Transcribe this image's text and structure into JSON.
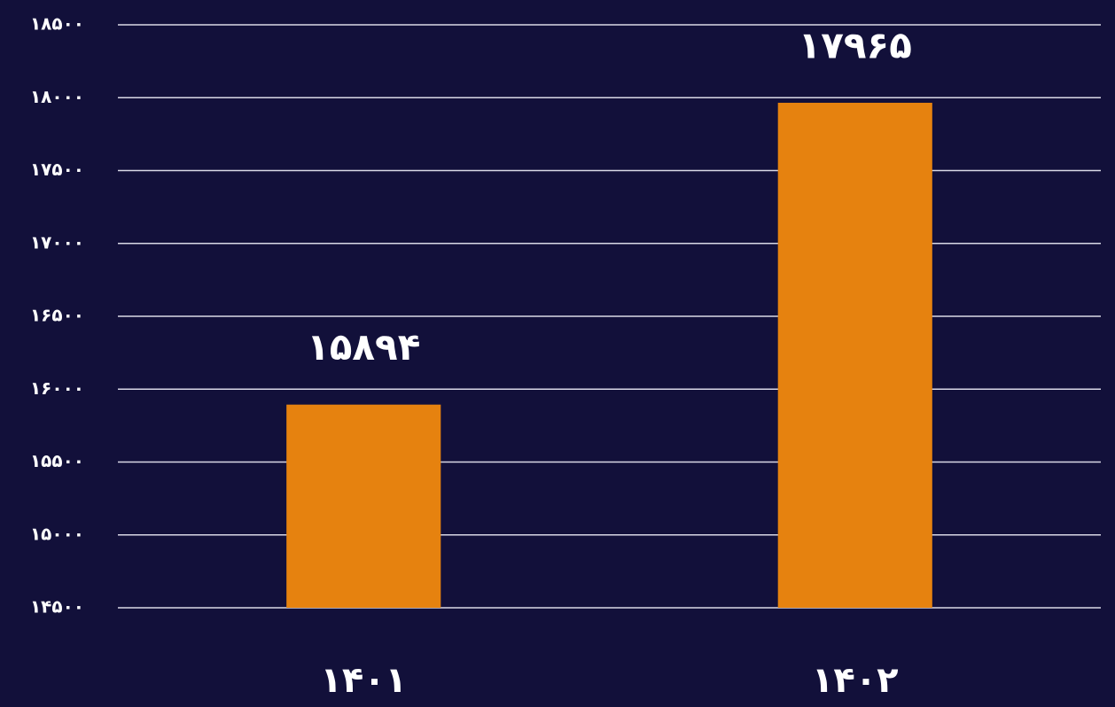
{
  "chart_data": {
    "type": "bar",
    "categories": [
      "۱۴۰۱",
      "۱۴۰۲"
    ],
    "values": [
      15894,
      17965
    ],
    "value_labels": [
      "۱۵۸۹۴",
      "۱۷۹۶۵"
    ],
    "color": "#e6820f",
    "ylim": [
      14500,
      18500
    ],
    "yticks": [
      {
        "value": 14500,
        "label": "۱۴۵۰۰"
      },
      {
        "value": 15000,
        "label": "۱۵۰۰۰"
      },
      {
        "value": 15500,
        "label": "۱۵۵۰۰"
      },
      {
        "value": 16000,
        "label": "۱۶۰۰۰"
      },
      {
        "value": 16500,
        "label": "۱۶۵۰۰"
      },
      {
        "value": 17000,
        "label": "۱۷۰۰۰"
      },
      {
        "value": 17500,
        "label": "۱۷۵۰۰"
      },
      {
        "value": 18000,
        "label": "۱۸۰۰۰"
      },
      {
        "value": 18500,
        "label": "۱۸۵۰۰"
      }
    ],
    "grid": true
  }
}
